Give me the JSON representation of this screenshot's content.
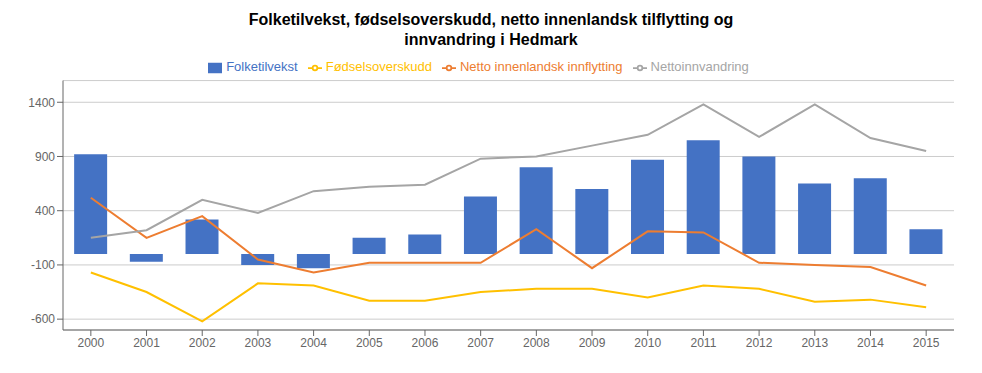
{
  "chart_data": {
    "type": "bar",
    "title": "Folketilvekst, fødselsoverskudd, netto innenlandsk tilflytting og\ninnvandring i Hedmark",
    "categories": [
      "2000",
      "2001",
      "2002",
      "2003",
      "2004",
      "2005",
      "2006",
      "2007",
      "2008",
      "2009",
      "2010",
      "2011",
      "2012",
      "2013",
      "2014",
      "2015"
    ],
    "series": [
      {
        "name": "Folketilvekst",
        "type": "bar",
        "color": "#4472C4",
        "values": [
          920,
          -70,
          320,
          -100,
          -130,
          150,
          180,
          530,
          800,
          600,
          870,
          1050,
          900,
          650,
          700,
          230
        ]
      },
      {
        "name": "Netto innenlandsk innflytting",
        "type": "line",
        "color": "#ED7D31",
        "values": [
          520,
          150,
          350,
          -50,
          -170,
          -80,
          -80,
          -80,
          230,
          -130,
          210,
          200,
          -80,
          -100,
          -120,
          -290
        ]
      },
      {
        "name": "Nettoinnvandring",
        "type": "line",
        "color": "#A5A5A5",
        "values": [
          150,
          220,
          500,
          380,
          580,
          620,
          640,
          880,
          900,
          1000,
          1100,
          1380,
          1080,
          1380,
          1070,
          950
        ]
      },
      {
        "name": "Fødselsoverskudd",
        "type": "line",
        "color": "#FFC000",
        "values": [
          -170,
          -350,
          -620,
          -270,
          -290,
          -430,
          -430,
          -350,
          -320,
          -320,
          -400,
          -290,
          -320,
          -440,
          -420,
          -490
        ]
      }
    ],
    "ylim": [
      -700,
      1600
    ],
    "yticks": [
      -600,
      -100,
      400,
      900,
      1400
    ],
    "grid": true
  }
}
